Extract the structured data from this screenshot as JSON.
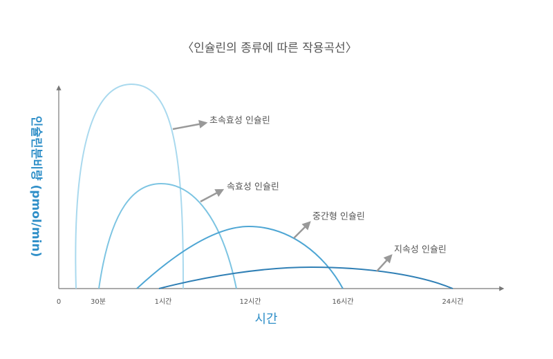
{
  "title": "〈인슐린의 종류에 따른 작용곡선〉",
  "y_axis_label": "인슐린분비량 (pmol/min)",
  "x_axis_label": "시간",
  "x_ticks": [
    "0",
    "30분",
    "1시간",
    "12시간",
    "16시간",
    "24시간"
  ],
  "curves": [
    {
      "label": "초속효성 인슐린"
    },
    {
      "label": "속효성 인슐린"
    },
    {
      "label": "중간형 인슐린"
    },
    {
      "label": "지속성 인슐린"
    }
  ]
}
